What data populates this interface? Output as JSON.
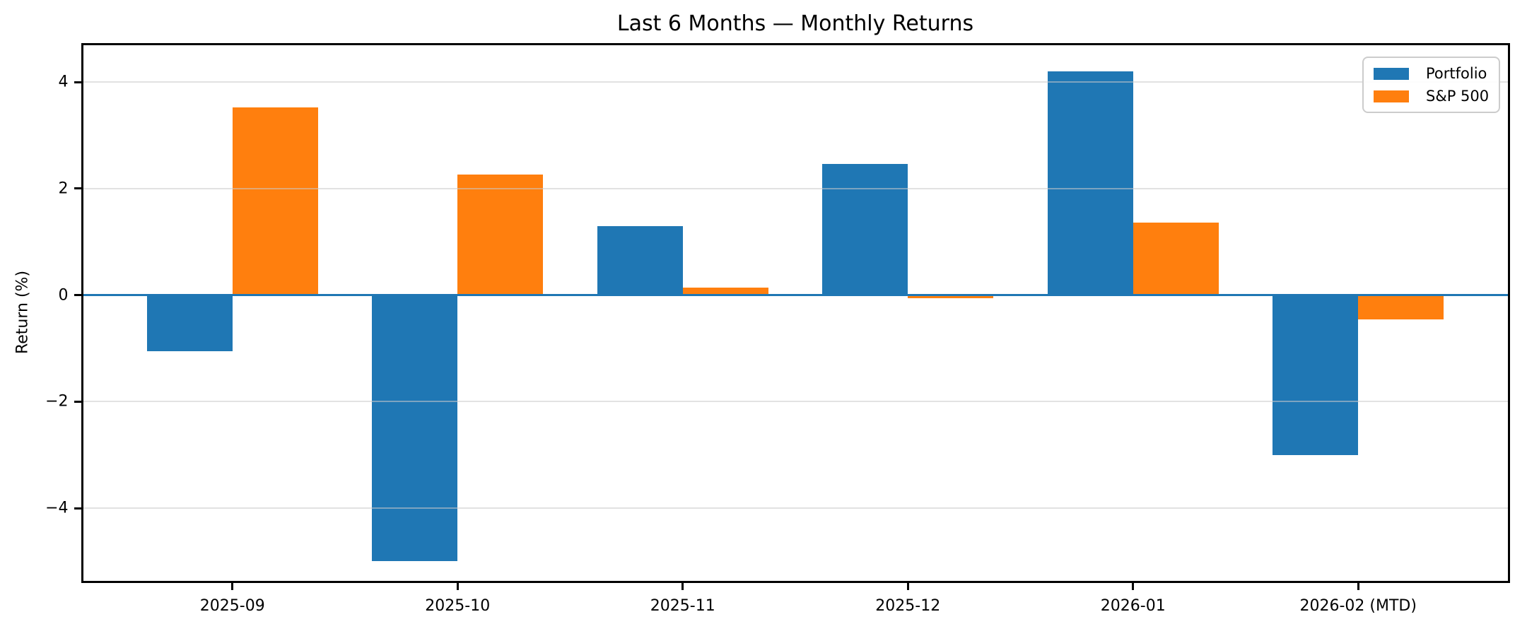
{
  "title": "Last 6 Months — Monthly Returns",
  "colors": {
    "portfolio": "#1f77b4",
    "sp500": "#ff7f0e",
    "zero_line": "#1f77b4",
    "grid": "#cccccc",
    "spine": "#000000",
    "background": "#ffffff"
  },
  "legend": {
    "entries": [
      "Portfolio",
      "S&P 500"
    ]
  },
  "chart_data": {
    "type": "bar",
    "title": "Last 6 Months — Monthly Returns",
    "xlabel": "",
    "ylabel": "Return (%)",
    "categories": [
      "2025-09",
      "2025-10",
      "2025-11",
      "2025-12",
      "2026-01",
      "2026-02 (MTD)"
    ],
    "series": [
      {
        "name": "Portfolio",
        "color": "#1f77b4",
        "values": [
          -1.06,
          -5.0,
          1.3,
          2.47,
          4.2,
          -3.0
        ]
      },
      {
        "name": "S&P 500",
        "color": "#ff7f0e",
        "values": [
          3.52,
          2.26,
          0.14,
          -0.06,
          1.36,
          -0.45
        ]
      }
    ],
    "yticks": [
      4,
      2,
      0,
      -2,
      -4
    ],
    "ylim": [
      -5.38,
      4.72
    ],
    "grid": true,
    "grid_axis": "y",
    "legend_position": "upper right",
    "zero_line": true
  }
}
